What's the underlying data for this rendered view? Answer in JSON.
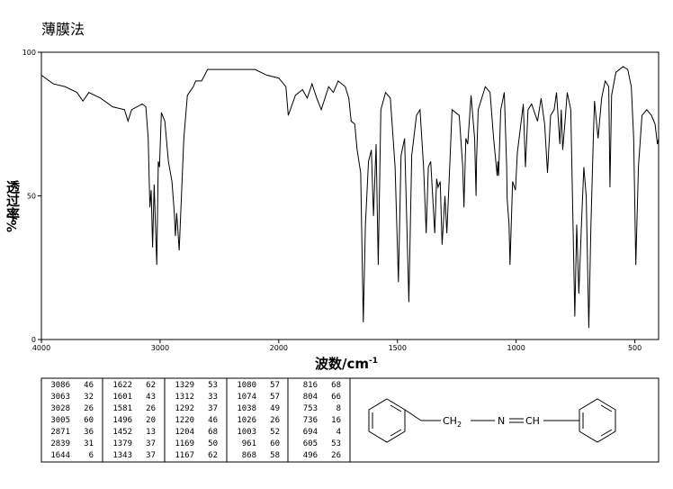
{
  "chart_data": {
    "type": "line",
    "title": "薄膜法",
    "ylabel": "透过率",
    "ylabel_unit": "%/",
    "xlabel": "波数/cm",
    "xlabel_exp": "-1",
    "xlim": [
      4000,
      400
    ],
    "xticks": [
      4000,
      3000,
      2000,
      1500,
      1000,
      500
    ],
    "xscale_break": 2000,
    "ylim": [
      0,
      100
    ],
    "yticks": [
      0,
      50,
      100
    ],
    "color": "#000000",
    "x": [
      4000,
      3900,
      3800,
      3700,
      3650,
      3600,
      3500,
      3400,
      3300,
      3270,
      3240,
      3150,
      3120,
      3100,
      3086,
      3075,
      3063,
      3050,
      3028,
      3015,
      3005,
      2989,
      2960,
      2930,
      2900,
      2880,
      2871,
      2860,
      2850,
      2839,
      2820,
      2800,
      2770,
      2720,
      2700,
      2650,
      2600,
      2500,
      2400,
      2300,
      2200,
      2100,
      2000,
      1970,
      1960,
      1930,
      1900,
      1880,
      1860,
      1840,
      1821,
      1790,
      1770,
      1750,
      1720,
      1705,
      1695,
      1680,
      1670,
      1655,
      1644,
      1635,
      1622,
      1610,
      1601,
      1590,
      1581,
      1570,
      1550,
      1530,
      1510,
      1496,
      1485,
      1470,
      1452,
      1440,
      1420,
      1405,
      1390,
      1379,
      1370,
      1360,
      1343,
      1335,
      1329,
      1320,
      1312,
      1300,
      1292,
      1280,
      1270,
      1240,
      1225,
      1220,
      1212,
      1204,
      1190,
      1175,
      1169,
      1167,
      1160,
      1130,
      1110,
      1095,
      1080,
      1077,
      1074,
      1065,
      1050,
      1040,
      1038,
      1030,
      1026,
      1015,
      1003,
      995,
      970,
      961,
      950,
      935,
      910,
      895,
      880,
      868,
      855,
      840,
      830,
      816,
      810,
      804,
      795,
      785,
      770,
      753,
      745,
      736,
      725,
      715,
      705,
      694,
      685,
      675,
      670,
      655,
      640,
      625,
      610,
      605,
      598,
      580,
      550,
      530,
      515,
      505,
      496,
      485,
      470,
      450,
      430,
      415,
      405,
      400
    ],
    "values": [
      92,
      89,
      88,
      86,
      83,
      86,
      84,
      81,
      80,
      76,
      80,
      82,
      81,
      70,
      46,
      52,
      32,
      54,
      26,
      62,
      60,
      79,
      76,
      62,
      55,
      44,
      36,
      44,
      38,
      31,
      50,
      70,
      85,
      88,
      90,
      90,
      94,
      94,
      94,
      94,
      94,
      92,
      91,
      88,
      78,
      85,
      87,
      84,
      89,
      84,
      80,
      88,
      86,
      90,
      88,
      84,
      76,
      75,
      66,
      58,
      6,
      40,
      62,
      66,
      43,
      68,
      26,
      80,
      86,
      84,
      60,
      20,
      64,
      70,
      13,
      64,
      78,
      80,
      60,
      37,
      60,
      62,
      37,
      56,
      53,
      55,
      33,
      50,
      37,
      60,
      80,
      78,
      60,
      46,
      70,
      68,
      85,
      70,
      50,
      62,
      80,
      88,
      86,
      70,
      57,
      62,
      57,
      80,
      86,
      60,
      49,
      40,
      26,
      55,
      52,
      65,
      82,
      60,
      80,
      82,
      76,
      84,
      75,
      58,
      78,
      80,
      86,
      68,
      80,
      66,
      75,
      86,
      80,
      8,
      40,
      16,
      40,
      60,
      50,
      4,
      40,
      70,
      83,
      70,
      84,
      90,
      88,
      53,
      85,
      93,
      95,
      94,
      88,
      70,
      26,
      60,
      78,
      80,
      78,
      75,
      68,
      70
    ]
  },
  "peak_table": [
    [
      [
        3086,
        46
      ],
      [
        3063,
        32
      ],
      [
        3028,
        26
      ],
      [
        3005,
        60
      ],
      [
        2871,
        36
      ],
      [
        2839,
        31
      ],
      [
        1644,
        6
      ]
    ],
    [
      [
        1622,
        62
      ],
      [
        1601,
        43
      ],
      [
        1581,
        26
      ],
      [
        1496,
        20
      ],
      [
        1452,
        13
      ],
      [
        1379,
        37
      ],
      [
        1343,
        37
      ]
    ],
    [
      [
        1329,
        53
      ],
      [
        1312,
        33
      ],
      [
        1292,
        37
      ],
      [
        1220,
        46
      ],
      [
        1204,
        68
      ],
      [
        1169,
        50
      ],
      [
        1167,
        62
      ]
    ],
    [
      [
        1080,
        57
      ],
      [
        1074,
        57
      ],
      [
        1038,
        49
      ],
      [
        1026,
        26
      ],
      [
        1003,
        52
      ],
      [
        961,
        60
      ],
      [
        868,
        58
      ]
    ],
    [
      [
        816,
        68
      ],
      [
        804,
        66
      ],
      [
        753,
        8
      ],
      [
        736,
        16
      ],
      [
        694,
        4
      ],
      [
        605,
        53
      ],
      [
        496,
        26
      ]
    ]
  ],
  "structure": {
    "ch2": "CH",
    "ch2_sub": "2",
    "n": "N",
    "ch": "CH"
  }
}
